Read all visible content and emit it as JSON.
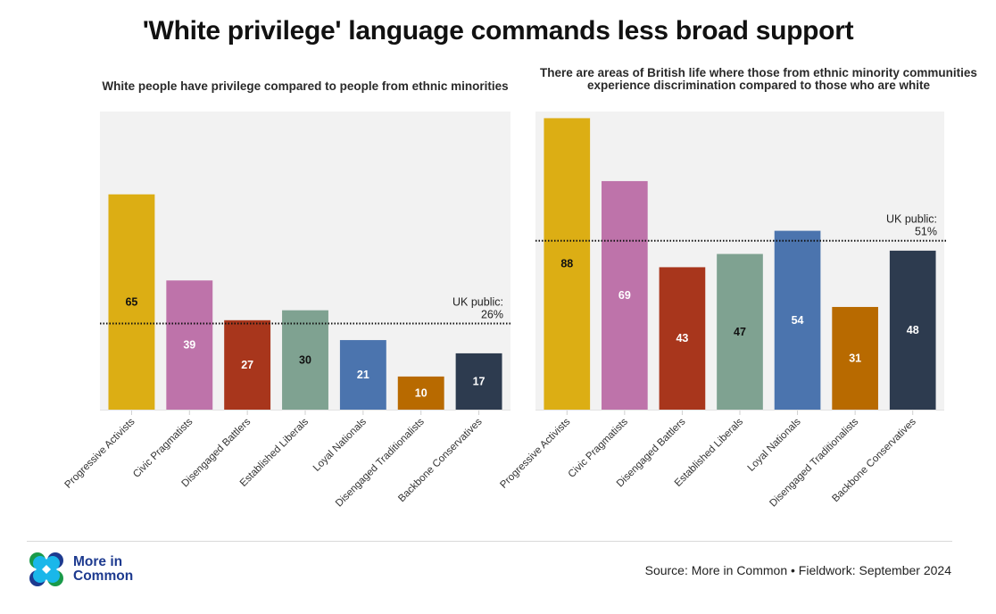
{
  "title": "'White privilege' language commands less broad support",
  "footer": {
    "logo_text_line1": "More in",
    "logo_text_line2": "Common",
    "source": "Source: More in Common • Fieldwork: September 2024"
  },
  "colors": {
    "plot_background": "#f2f2f2",
    "Progressive Activists": "#dcae14",
    "Civic Pragmatists": "#be73aa",
    "Disengaged Battlers": "#a8361c",
    "Established Liberals": "#7fa291",
    "Loyal Nationals": "#4b74ae",
    "Disengaged Traditionalists": "#b86a00",
    "Backbone Conservatives": "#2d3b4f",
    "logo_blue": "#1d3a8f",
    "logo_green": "#1a9a4a",
    "logo_cyan": "#1ab7ea"
  },
  "chart_data": [
    {
      "type": "bar",
      "title": "White people have privilege compared to people from ethnic minorities",
      "xlabel": "",
      "ylabel": "",
      "ylim": [
        0,
        90
      ],
      "grid": false,
      "categories": [
        "Progressive Activists",
        "Civic Pragmatists",
        "Disengaged Battlers",
        "Established Liberals",
        "Loyal Nationals",
        "Disengaged Traditionalists",
        "Backbone Conservatives"
      ],
      "values": [
        65,
        39,
        27,
        30,
        21,
        10,
        17
      ],
      "data_labels": [
        "65",
        "39",
        "27",
        "30",
        "21",
        "10",
        "17"
      ],
      "label_colors": [
        "#111111",
        "#ffffff",
        "#ffffff",
        "#111111",
        "#ffffff",
        "#ffffff",
        "#ffffff"
      ],
      "reference_line": {
        "value": 26,
        "label_line1": "UK public:",
        "label_line2": "26%",
        "style": "dotted"
      }
    },
    {
      "type": "bar",
      "title": "There are areas of British life where those from ethnic minority communities experience discrimination compared to those who are white",
      "xlabel": "",
      "ylabel": "",
      "ylim": [
        0,
        90
      ],
      "grid": false,
      "categories": [
        "Progressive Activists",
        "Civic Pragmatists",
        "Disengaged Battlers",
        "Established Liberals",
        "Loyal Nationals",
        "Disengaged Traditionalists",
        "Backbone Conservatives"
      ],
      "values": [
        88,
        69,
        43,
        47,
        54,
        31,
        48
      ],
      "data_labels": [
        "88",
        "69",
        "43",
        "47",
        "54",
        "31",
        "48"
      ],
      "label_colors": [
        "#111111",
        "#ffffff",
        "#ffffff",
        "#111111",
        "#ffffff",
        "#ffffff",
        "#ffffff"
      ],
      "reference_line": {
        "value": 51,
        "label_line1": "UK public:",
        "label_line2": "51%",
        "style": "dotted"
      }
    }
  ]
}
